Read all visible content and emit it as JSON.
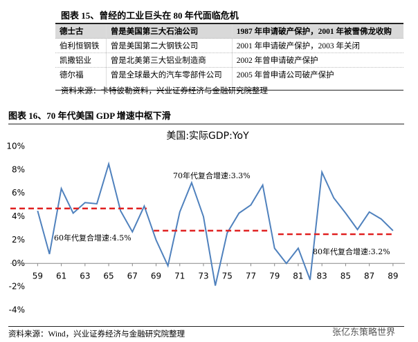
{
  "table": {
    "title": "图表 15、曾经的工业巨头在 80 年代面临危机",
    "header": [
      "德士古",
      "曾是美国第三大石油公司",
      "1987 年申请破产保护，2001 年被雪佛龙收购"
    ],
    "rows": [
      [
        "伯利恒钢铁",
        "曾是美国第二大钢铁公司",
        "2001 年申请破产保护，2003 年关闭"
      ],
      [
        "凯撒铝业",
        "曾是北美第三大铝业制造商",
        "2002 年曾申请破产保护"
      ],
      [
        "德尔福",
        "曾是全球最大的汽车零部件公司",
        "2005 年曾申请公司破产保护"
      ]
    ],
    "source": "资料来源：卡特彼勒资料，兴业证券经济与金融研究院整理"
  },
  "chart_data": {
    "type": "line",
    "heading": "图表 16、70 年代美国 GDP 增速中枢下滑",
    "title": "美国:实际GDP:YoY",
    "x": [
      59,
      60,
      61,
      62,
      63,
      64,
      65,
      66,
      67,
      68,
      69,
      70,
      71,
      72,
      73,
      74,
      75,
      76,
      77,
      78,
      79,
      80,
      81,
      82,
      83,
      84,
      85,
      86,
      87,
      88,
      89
    ],
    "values": [
      4.5,
      0.8,
      6.4,
      4.3,
      5.2,
      5.1,
      8.5,
      4.5,
      2.7,
      4.9,
      2.0,
      -0.2,
      4.4,
      6.9,
      4.0,
      -1.9,
      2.6,
      4.3,
      5.0,
      6.7,
      1.3,
      0.0,
      1.3,
      -1.4,
      7.8,
      5.6,
      4.3,
      2.9,
      4.4,
      3.8,
      2.8
    ],
    "color": "#4f81bd",
    "xlim": [
      56.7,
      90
    ],
    "xticks": [
      59,
      61,
      63,
      65,
      67,
      69,
      71,
      73,
      75,
      77,
      79,
      81,
      83,
      85,
      87,
      89
    ],
    "ylim": [
      -4,
      10
    ],
    "yticks": [
      {
        "value": -4,
        "label": "-4%"
      },
      {
        "value": -2,
        "label": "-2%"
      },
      {
        "value": 0,
        "label": "0%"
      },
      {
        "value": 2,
        "label": "2%"
      },
      {
        "value": 4,
        "label": "4%"
      },
      {
        "value": 6,
        "label": "6%"
      },
      {
        "value": 8,
        "label": "8%"
      },
      {
        "value": 10,
        "label": "10%"
      }
    ],
    "grid": false,
    "reference_lines": [
      {
        "value": 4.7,
        "xrange": [
          56.7,
          68.2
        ],
        "color": "#e02020"
      },
      {
        "value": 2.8,
        "xrange": [
          68.8,
          78.5
        ],
        "color": "#e02020"
      },
      {
        "value": 2.5,
        "xrange": [
          79.3,
          89.1
        ],
        "color": "#e02020"
      }
    ],
    "annotations": [
      "60年代复合增速:4.5%",
      "70年代复合增速:3.3%",
      "80年代复合增速:3.2%"
    ],
    "source": "资料来源：Wind，兴业证券经济与金融研究院整理",
    "watermark": "张亿东策略世界"
  }
}
